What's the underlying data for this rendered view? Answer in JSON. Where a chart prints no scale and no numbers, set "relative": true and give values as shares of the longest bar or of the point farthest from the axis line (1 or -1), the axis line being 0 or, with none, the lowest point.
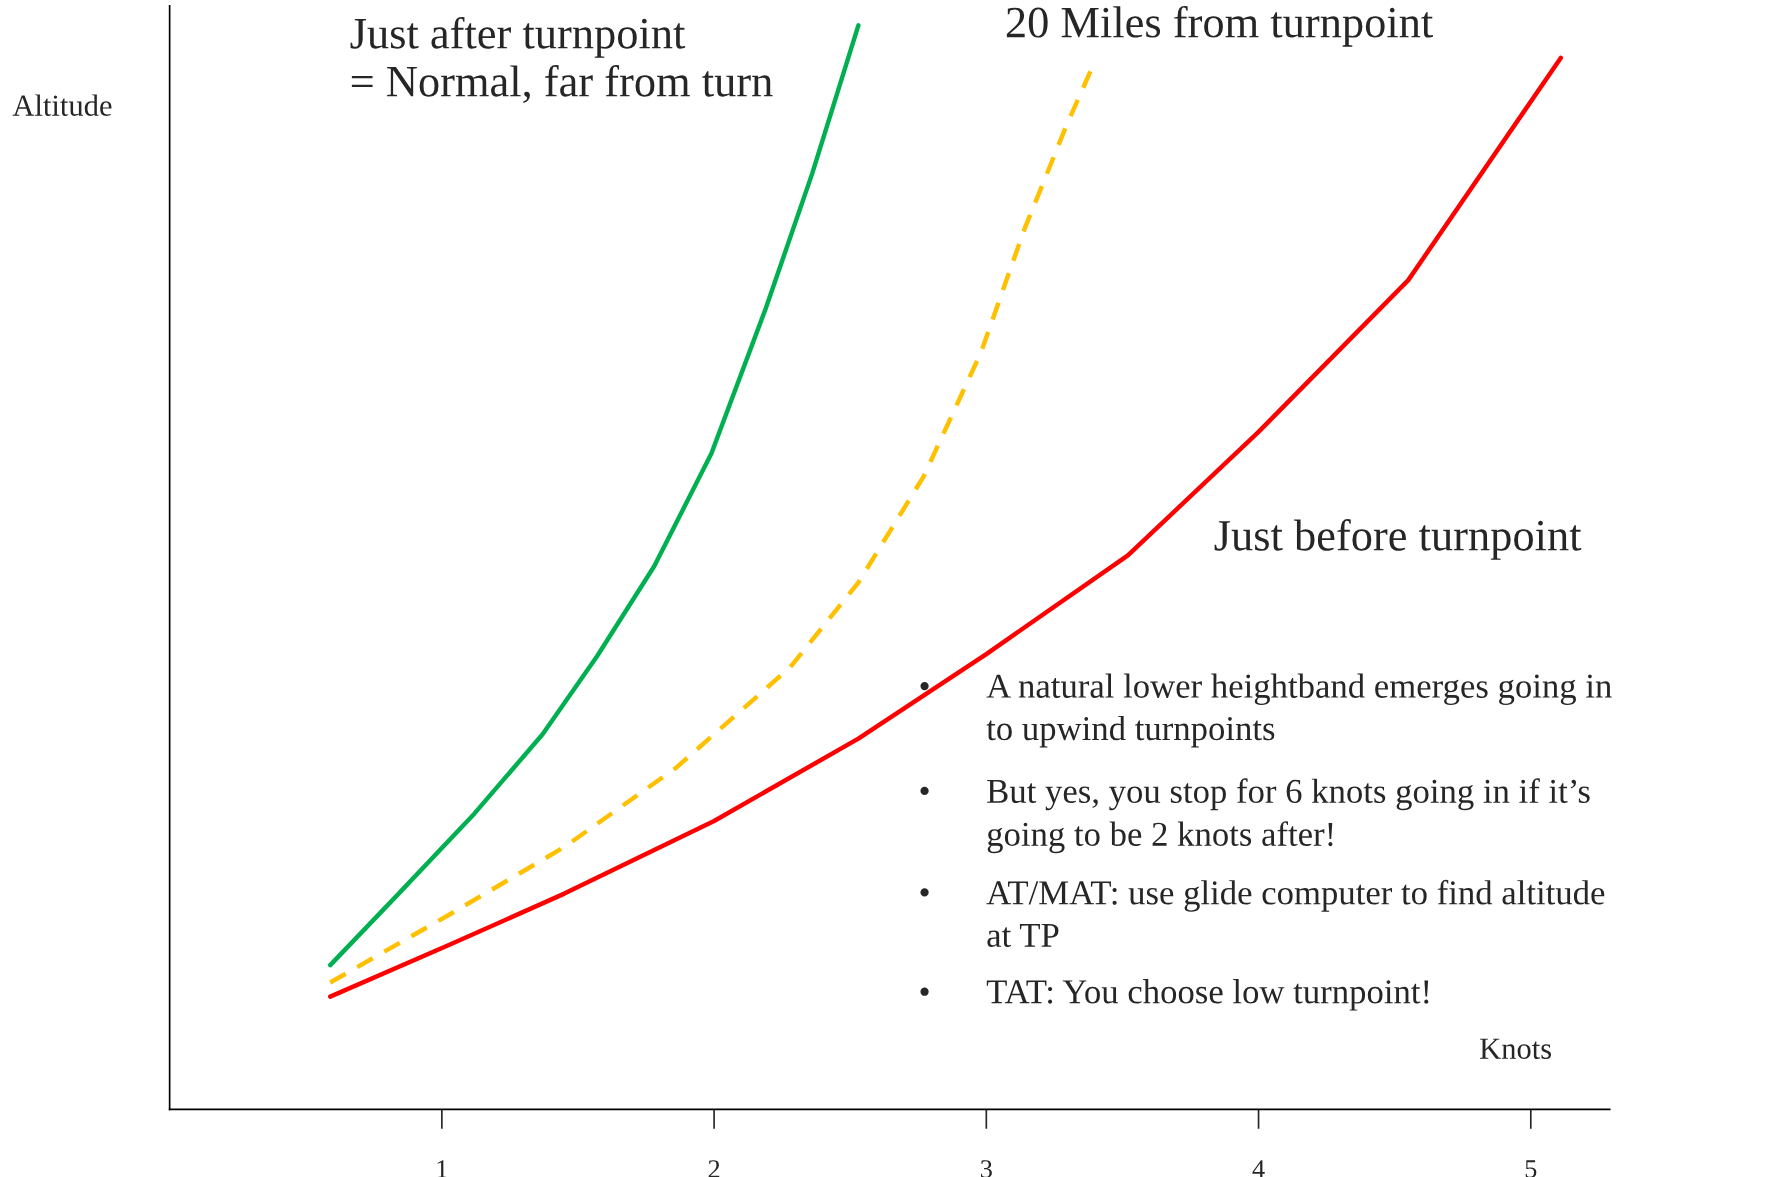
{
  "chart_data": {
    "type": "line",
    "relative": true,
    "xlabel": "Knots",
    "ylabel": "Altitude",
    "xlim": [
      0,
      5.29
    ],
    "xticks": [
      1,
      2,
      3,
      4,
      5
    ],
    "grid": false,
    "series": [
      {
        "name": "Just after turnpoint\n= Normal, far from turn",
        "color": "#00b050",
        "line_style": "solid",
        "x": [
          0.59,
          0.83,
          1.12,
          1.37,
          1.57,
          1.78,
          1.99,
          2.19,
          2.36,
          2.53
        ],
        "values": [
          0.133,
          0.196,
          0.273,
          0.346,
          0.418,
          0.501,
          0.605,
          0.739,
          0.863,
          1.0
        ]
      },
      {
        "name": "20 Miles from turnpoint",
        "color": "#ffc000",
        "line_style": "dashed",
        "x": [
          0.59,
          1.03,
          1.45,
          1.86,
          2.28,
          2.53,
          2.77,
          2.98,
          3.14,
          3.29,
          3.39
        ],
        "values": [
          0.117,
          0.18,
          0.242,
          0.315,
          0.408,
          0.486,
          0.584,
          0.698,
          0.812,
          0.905,
          0.962
        ]
      },
      {
        "name": "Just before turnpoint",
        "color": "#ff0000",
        "line_style": "solid",
        "x": [
          0.59,
          1.03,
          1.45,
          2.0,
          2.53,
          3.0,
          3.52,
          4.0,
          4.55,
          5.11
        ],
        "values": [
          0.104,
          0.152,
          0.199,
          0.266,
          0.342,
          0.42,
          0.511,
          0.625,
          0.765,
          0.97
        ]
      }
    ],
    "annotations": [
      "• A natural lower heightband emerges going in\nto upwind turnpoints",
      "• But yes, you stop for 6 knots going in if it’s\ngoing to be 2 knots after!",
      "• AT/MAT: use glide computer to find altitude\nat TP",
      "• TAT: You choose low turnpoint!"
    ]
  }
}
